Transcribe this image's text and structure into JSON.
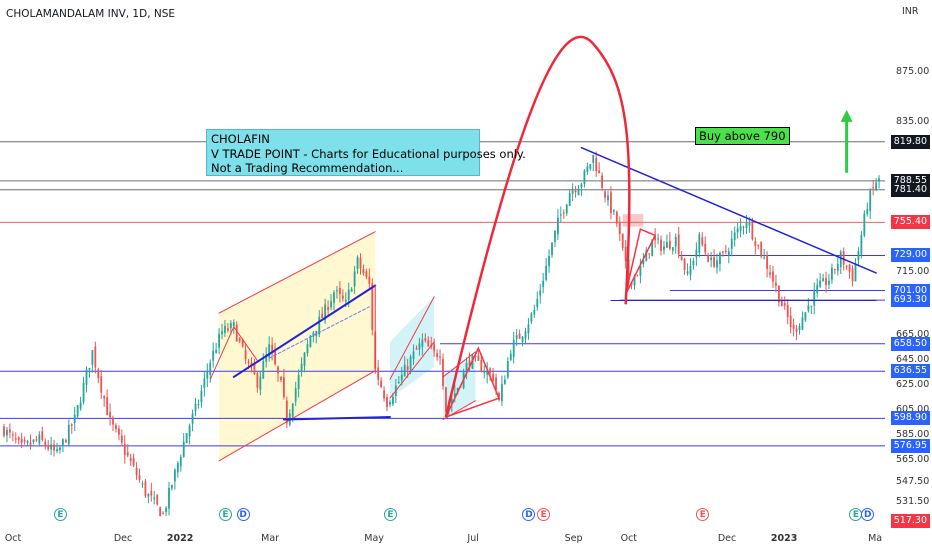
{
  "header": {
    "title": "CHOLAMANDALAM INV, 1D, NSE"
  },
  "note": {
    "lines": [
      "CHOLAFIN",
      "V TRADE POINT - Charts for Educational purposes only.",
      "Not a Trading Recommendation..."
    ]
  },
  "buy_label": "Buy above 790",
  "currency": "INR",
  "colors": {
    "up": "#26a69a",
    "down": "#ef5350",
    "blue_level": "#2962ff",
    "red_level": "#f23645",
    "black_level": "#131722",
    "annotation_bg": "#7ee0ea",
    "buy_bg": "#4ce04c",
    "arrow": "#2ecc40"
  },
  "chart_data": {
    "type": "candlestick",
    "title": "CHOLAMANDALAM INV, 1D, NSE",
    "ylim": [
      505,
      905
    ],
    "y_ticks": [
      "875.00",
      "835.00",
      "715.00",
      "665.00",
      "645.00",
      "625.00",
      "605.00",
      "585.00",
      "565.00",
      "547.50",
      "531.50"
    ],
    "x_ticks": [
      "Oct",
      "Dec",
      "2022",
      "Mar",
      "May",
      "Jul",
      "Sep",
      "Oct",
      "Dec",
      "2023",
      "Ma"
    ],
    "x_tick_idx": [
      3,
      40,
      58,
      90,
      125,
      160,
      193,
      212,
      245,
      263,
      296
    ],
    "n_days": 298,
    "close_anchors": [
      [
        0,
        590
      ],
      [
        6,
        575
      ],
      [
        12,
        582
      ],
      [
        18,
        570
      ],
      [
        24,
        598
      ],
      [
        30,
        652
      ],
      [
        36,
        596
      ],
      [
        42,
        568
      ],
      [
        48,
        540
      ],
      [
        54,
        522
      ],
      [
        58,
        555
      ],
      [
        62,
        588
      ],
      [
        66,
        612
      ],
      [
        70,
        645
      ],
      [
        74,
        668
      ],
      [
        78,
        672
      ],
      [
        82,
        645
      ],
      [
        86,
        628
      ],
      [
        90,
        655
      ],
      [
        94,
        625
      ],
      [
        96,
        598
      ],
      [
        98,
        615
      ],
      [
        104,
        665
      ],
      [
        108,
        680
      ],
      [
        112,
        700
      ],
      [
        116,
        690
      ],
      [
        120,
        724
      ],
      [
        124,
        705
      ],
      [
        126,
        638
      ],
      [
        130,
        612
      ],
      [
        134,
        628
      ],
      [
        138,
        646
      ],
      [
        142,
        660
      ],
      [
        146,
        650
      ],
      [
        148,
        652
      ],
      [
        150,
        606
      ],
      [
        154,
        624
      ],
      [
        158,
        646
      ],
      [
        162,
        640
      ],
      [
        166,
        632
      ],
      [
        168,
        612
      ],
      [
        172,
        655
      ],
      [
        176,
        668
      ],
      [
        180,
        685
      ],
      [
        184,
        720
      ],
      [
        188,
        755
      ],
      [
        192,
        780
      ],
      [
        196,
        788
      ],
      [
        200,
        808
      ],
      [
        204,
        778
      ],
      [
        208,
        755
      ],
      [
        212,
        708
      ],
      [
        216,
        718
      ],
      [
        220,
        740
      ],
      [
        224,
        736
      ],
      [
        228,
        742
      ],
      [
        232,
        712
      ],
      [
        236,
        742
      ],
      [
        240,
        723
      ],
      [
        244,
        728
      ],
      [
        248,
        745
      ],
      [
        252,
        758
      ],
      [
        256,
        736
      ],
      [
        260,
        716
      ],
      [
        264,
        690
      ],
      [
        268,
        668
      ],
      [
        272,
        684
      ],
      [
        276,
        702
      ],
      [
        280,
        710
      ],
      [
        284,
        728
      ],
      [
        288,
        712
      ],
      [
        290,
        733
      ],
      [
        293,
        770
      ],
      [
        296,
        788
      ]
    ],
    "levels": [
      {
        "value": 819.8,
        "label": "819.80",
        "color": "black"
      },
      {
        "value": 788.55,
        "label": "788.55",
        "color": "black"
      },
      {
        "value": 781.4,
        "label": "781.40",
        "color": "black"
      },
      {
        "value": 755.4,
        "label": "755.40",
        "color": "red"
      },
      {
        "value": 729.0,
        "label": "729.00",
        "color": "blue"
      },
      {
        "value": 701.0,
        "label": "701.00",
        "color": "blue"
      },
      {
        "value": 693.3,
        "label": "693.30",
        "color": "blue"
      },
      {
        "value": 658.5,
        "label": "658.50",
        "color": "blue"
      },
      {
        "value": 636.55,
        "label": "636.55",
        "color": "blue"
      },
      {
        "value": 598.9,
        "label": "598.90",
        "color": "blue"
      },
      {
        "value": 576.95,
        "label": "576.95",
        "color": "blue"
      },
      {
        "value": 517.3,
        "label": "517.30",
        "color": "red"
      }
    ],
    "events": [
      {
        "type": "E",
        "style": "e-green",
        "day": 19
      },
      {
        "type": "E",
        "style": "e-green",
        "day": 75
      },
      {
        "type": "D",
        "style": "d-blue",
        "day": 81
      },
      {
        "type": "E",
        "style": "e-green",
        "day": 131
      },
      {
        "type": "D",
        "style": "d-blue",
        "day": 178
      },
      {
        "type": "E",
        "style": "e-red",
        "day": 183
      },
      {
        "type": "E",
        "style": "e-red",
        "day": 237
      },
      {
        "type": "E",
        "style": "e-green",
        "day": 289
      },
      {
        "type": "D",
        "style": "d-blue",
        "day": 293
      }
    ]
  }
}
